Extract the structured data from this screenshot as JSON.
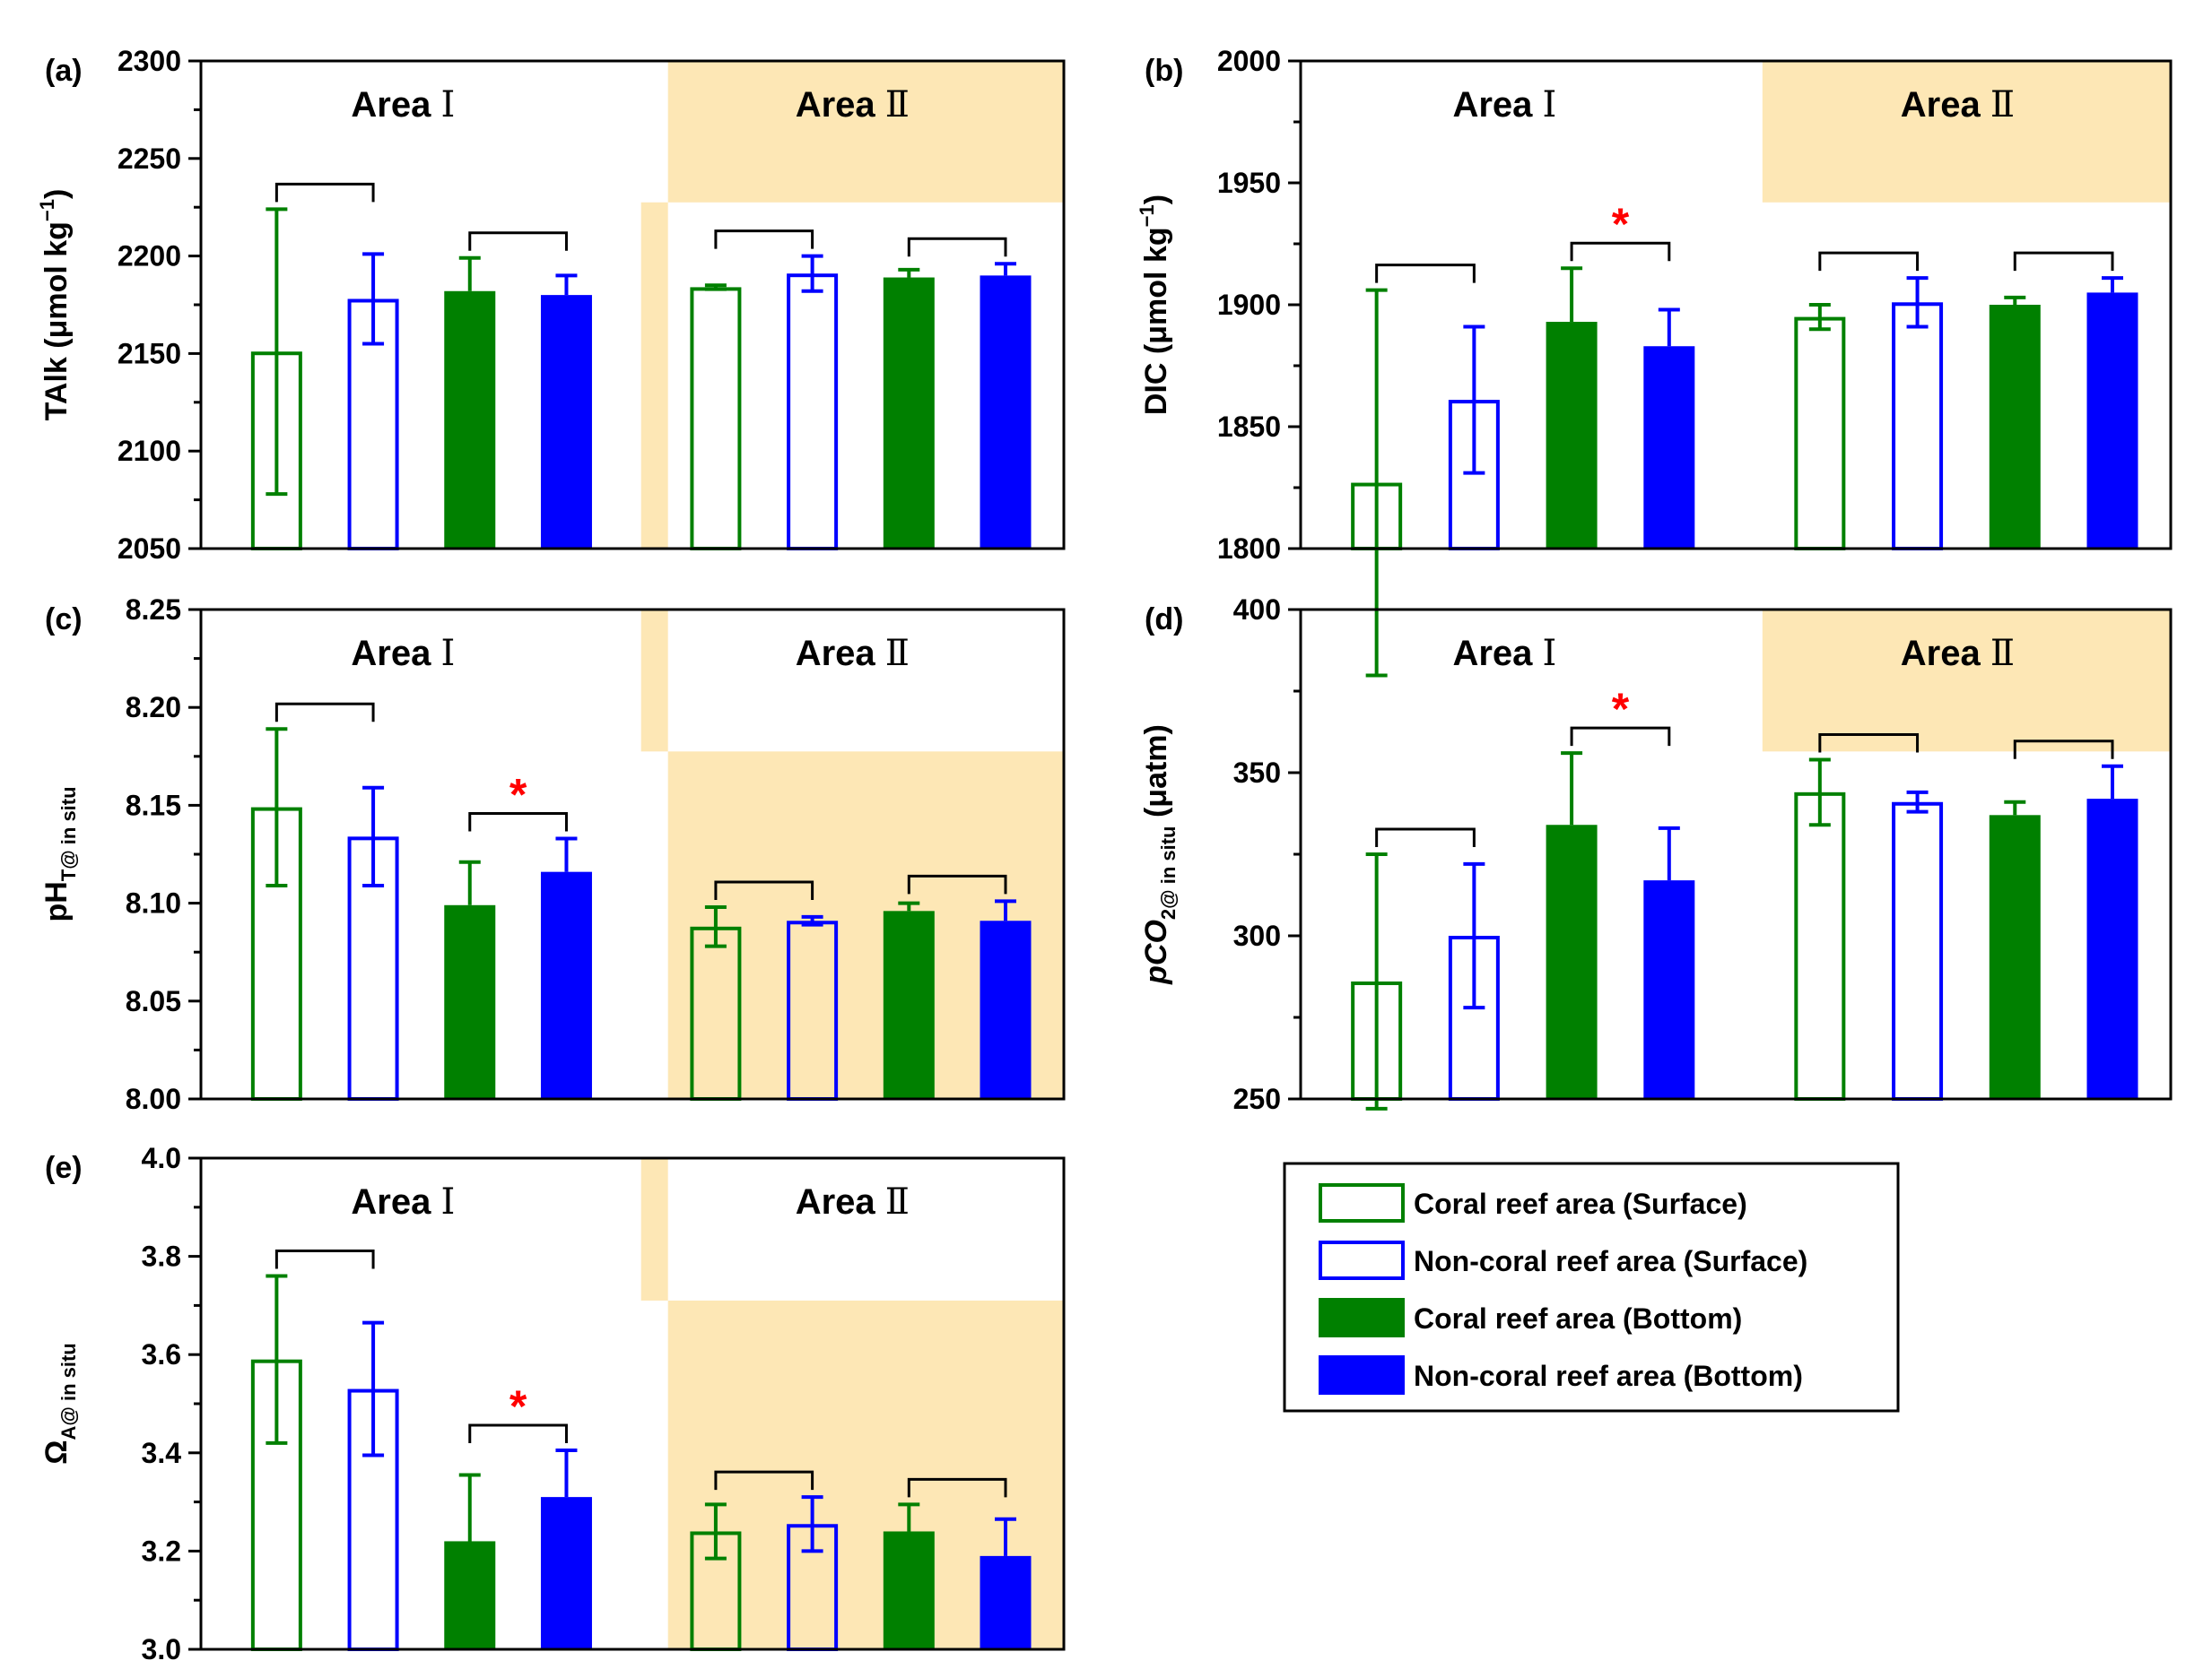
{
  "chart_data": [
    {
      "type": "bar",
      "panel": "(a)",
      "ylabel": "TAlk (μmol kg⁻¹)",
      "ylabel_main": "TAlk (μmol kg",
      "ylabel_sup": "−1",
      "ylabel_close": ")",
      "ylim": [
        2050,
        2300
      ],
      "ticks": [
        2050,
        2100,
        2150,
        2200,
        2250,
        2300
      ],
      "tick_labels": [
        "2050",
        "2100",
        "2150",
        "2200",
        "2250",
        "2300"
      ],
      "areas": [
        {
          "label": "Area",
          "roman": "Ⅰ"
        },
        {
          "label": "Area",
          "roman": "Ⅱ"
        }
      ],
      "shading": "area2-top-left-strip",
      "series": [
        {
          "name": "Coral reef area (Surface)",
          "values": [
            2151,
            2184
          ],
          "err": [
            73,
            1
          ]
        },
        {
          "name": "Non-coral reef area (Surface)",
          "values": [
            2178,
            2191
          ],
          "err": [
            23,
            9
          ]
        },
        {
          "name": "Coral reef area (Bottom)",
          "values": [
            2182,
            2189
          ],
          "err": [
            17,
            4
          ]
        },
        {
          "name": "Non-coral reef area (Bottom)",
          "values": [
            2180,
            2190
          ],
          "err": [
            10,
            6
          ]
        }
      ],
      "significant": [
        false,
        false,
        false,
        false
      ],
      "star_label": "*"
    },
    {
      "type": "bar",
      "panel": "(b)",
      "ylabel": "DIC (μmol kg⁻¹)",
      "ylabel_main": "DIC (μmol kg",
      "ylabel_sup": "−1",
      "ylabel_close": ")",
      "ylim": [
        1800,
        2000
      ],
      "ticks": [
        1800,
        1850,
        1900,
        1950,
        2000
      ],
      "tick_labels": [
        "1800",
        "1850",
        "1900",
        "1950",
        "2000"
      ],
      "areas": [
        {
          "label": "Area",
          "roman": "Ⅰ"
        },
        {
          "label": "Area",
          "roman": "Ⅱ"
        }
      ],
      "shading": "area2-top",
      "series": [
        {
          "name": "Coral reef area (Surface)",
          "values": [
            1827,
            1895
          ],
          "err": [
            79,
            5
          ]
        },
        {
          "name": "Non-coral reef area (Surface)",
          "values": [
            1861,
            1901
          ],
          "err": [
            30,
            10
          ]
        },
        {
          "name": "Coral reef area (Bottom)",
          "values": [
            1893,
            1900
          ],
          "err": [
            22,
            3
          ]
        },
        {
          "name": "Non-coral reef area (Bottom)",
          "values": [
            1883,
            1905
          ],
          "err": [
            15,
            6
          ]
        }
      ],
      "significant": [
        false,
        true,
        false,
        false
      ],
      "star_label": "*"
    },
    {
      "type": "bar",
      "panel": "(c)",
      "ylabel_main": "pH",
      "ylabel_sub": "T@ in situ",
      "ylim": [
        8.0,
        8.25
      ],
      "ticks": [
        8.0,
        8.05,
        8.1,
        8.15,
        8.2,
        8.25
      ],
      "tick_labels": [
        "8.00",
        "8.05",
        "8.10",
        "8.15",
        "8.20",
        "8.25"
      ],
      "areas": [
        {
          "label": "Area",
          "roman": "Ⅰ"
        },
        {
          "label": "Area",
          "roman": "Ⅱ"
        }
      ],
      "shading": "area2-bottom-left-strip",
      "series": [
        {
          "name": "Coral reef area (Surface)",
          "values": [
            8.149,
            8.088
          ],
          "err": [
            0.04,
            0.01
          ]
        },
        {
          "name": "Non-coral reef area (Surface)",
          "values": [
            8.134,
            8.091
          ],
          "err": [
            0.025,
            0.002
          ]
        },
        {
          "name": "Coral reef area (Bottom)",
          "values": [
            8.099,
            8.096
          ],
          "err": [
            0.022,
            0.004
          ]
        },
        {
          "name": "Non-coral reef area (Bottom)",
          "values": [
            8.116,
            8.091
          ],
          "err": [
            0.017,
            0.01
          ]
        }
      ],
      "significant": [
        false,
        true,
        false,
        false
      ],
      "star_label": "*"
    },
    {
      "type": "bar",
      "panel": "(d)",
      "ylabel_main": "pCO",
      "ylabel_sub": "2@ in situ",
      "ylabel_close": " (μatm)",
      "ylim": [
        250,
        400
      ],
      "ticks": [
        250,
        300,
        350,
        400
      ],
      "tick_labels": [
        "250",
        "300",
        "350",
        "400"
      ],
      "areas": [
        {
          "label": "Area",
          "roman": "Ⅰ"
        },
        {
          "label": "Area",
          "roman": "Ⅱ"
        }
      ],
      "shading": "area2-top",
      "series": [
        {
          "name": "Coral reef area (Surface)",
          "values": [
            286,
            344
          ],
          "err": [
            39,
            10
          ]
        },
        {
          "name": "Non-coral reef area (Surface)",
          "values": [
            300,
            341
          ],
          "err": [
            22,
            3
          ]
        },
        {
          "name": "Coral reef area (Bottom)",
          "values": [
            334,
            337
          ],
          "err": [
            22,
            4
          ]
        },
        {
          "name": "Non-coral reef area (Bottom)",
          "values": [
            317,
            342
          ],
          "err": [
            16,
            10
          ]
        }
      ],
      "significant": [
        false,
        true,
        false,
        false
      ],
      "star_label": "*"
    },
    {
      "type": "bar",
      "panel": "(e)",
      "ylabel_main": "Ω",
      "ylabel_sub": "A@ in situ",
      "ylim": [
        3.0,
        4.0
      ],
      "ticks": [
        3.0,
        3.2,
        3.4,
        3.6,
        3.8,
        4.0
      ],
      "tick_labels": [
        "3.0",
        "3.2",
        "3.4",
        "3.6",
        "3.8",
        "4.0"
      ],
      "areas": [
        {
          "label": "Area",
          "roman": "Ⅰ"
        },
        {
          "label": "Area",
          "roman": "Ⅱ"
        }
      ],
      "shading": "area2-bottom-left-strip",
      "series": [
        {
          "name": "Coral reef area (Surface)",
          "values": [
            3.59,
            3.24
          ],
          "err": [
            0.17,
            0.055
          ]
        },
        {
          "name": "Non-coral reef area (Surface)",
          "values": [
            3.53,
            3.255
          ],
          "err": [
            0.135,
            0.055
          ]
        },
        {
          "name": "Coral reef area (Bottom)",
          "values": [
            3.22,
            3.24
          ],
          "err": [
            0.135,
            0.055
          ]
        },
        {
          "name": "Non-coral reef area (Bottom)",
          "values": [
            3.31,
            3.19
          ],
          "err": [
            0.095,
            0.075
          ]
        }
      ],
      "significant": [
        false,
        true,
        false,
        false
      ],
      "star_label": "*"
    }
  ],
  "legend": {
    "entries": [
      {
        "label": "Coral reef area (Surface)",
        "color": "#008000",
        "filled": false
      },
      {
        "label": "Non-coral reef area (Surface)",
        "color": "#0000ff",
        "filled": false
      },
      {
        "label": "Coral reef area (Bottom)",
        "color": "#008000",
        "filled": true
      },
      {
        "label": "Non-coral reef area (Bottom)",
        "color": "#0000ff",
        "filled": true
      }
    ]
  },
  "colors": {
    "green": "#008000",
    "blue": "#0000ff",
    "shade": "#fde7b5",
    "star": "#ff0000"
  }
}
